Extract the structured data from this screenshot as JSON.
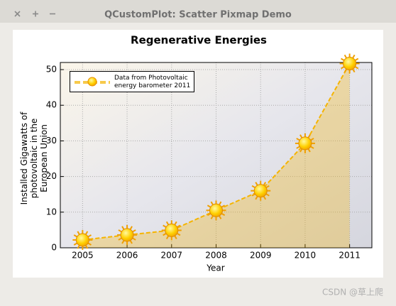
{
  "window": {
    "title": "QCustomPlot: Scatter Pixmap Demo"
  },
  "chart_data": {
    "type": "line",
    "title": "Regenerative Energies",
    "x_label": "Year",
    "y_label": "Installed Gigawatts of photovoltaic in the European Union",
    "x": [
      2005,
      2006,
      2007,
      2008,
      2009,
      2010,
      2011
    ],
    "series": [
      {
        "name": "Data from Photovoltaic energy barometer 2011",
        "color": "#f5b400",
        "values": [
          2.2,
          3.6,
          4.9,
          10.5,
          16,
          29.3,
          51.7
        ]
      }
    ],
    "xlim": [
      2004.5,
      2011.5
    ],
    "xticks": [
      2005,
      2006,
      2007,
      2008,
      2009,
      2010,
      2011
    ],
    "ylim": [
      0,
      52
    ],
    "yticks": [
      0,
      10,
      20,
      30,
      40,
      50
    ],
    "grid": true,
    "legend": "top-left"
  },
  "watermark": "CSDN @草上爬"
}
